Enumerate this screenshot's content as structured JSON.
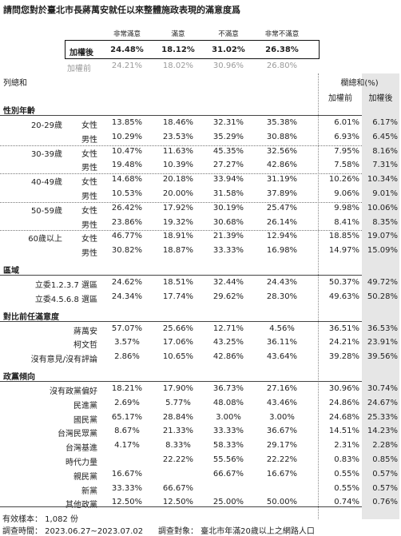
{
  "title": "請問您對於臺北市長蔣萬安就任以來整體施政表現的滿意度爲",
  "columns": [
    "非常滿意",
    "滿意",
    "不滿意",
    "非常不滿意"
  ],
  "weighted": {
    "label": "加權後",
    "values": [
      "24.48%",
      "18.12%",
      "31.02%",
      "26.38%"
    ]
  },
  "unweighted": {
    "label": "加權前",
    "values": [
      "24.21%",
      "18.02%",
      "30.96%",
      "26.80%"
    ]
  },
  "row_header": "列總和",
  "col_total_header": "欄總和(%)",
  "col_total_sub": [
    "加權前",
    "加權後"
  ],
  "sections": [
    {
      "title": "性別年齡",
      "groups": [
        {
          "label": "20-29歲",
          "rows": [
            {
              "sub": "女性",
              "v": [
                "13.85%",
                "18.46%",
                "32.31%",
                "35.38%"
              ],
              "pre": "6.01%",
              "post": "6.17%"
            },
            {
              "sub": "男性",
              "v": [
                "10.29%",
                "23.53%",
                "35.29%",
                "30.88%"
              ],
              "pre": "6.93%",
              "post": "6.45%"
            }
          ]
        },
        {
          "label": "30-39歲",
          "rows": [
            {
              "sub": "女性",
              "v": [
                "10.47%",
                "11.63%",
                "45.35%",
                "32.56%"
              ],
              "pre": "7.95%",
              "post": "8.16%"
            },
            {
              "sub": "男性",
              "v": [
                "19.48%",
                "10.39%",
                "27.27%",
                "42.86%"
              ],
              "pre": "7.58%",
              "post": "7.31%"
            }
          ]
        },
        {
          "label": "40-49歲",
          "rows": [
            {
              "sub": "女性",
              "v": [
                "14.68%",
                "20.18%",
                "33.94%",
                "31.19%"
              ],
              "pre": "10.26%",
              "post": "10.34%"
            },
            {
              "sub": "男性",
              "v": [
                "10.53%",
                "20.00%",
                "31.58%",
                "37.89%"
              ],
              "pre": "9.06%",
              "post": "9.01%"
            }
          ]
        },
        {
          "label": "50-59歲",
          "rows": [
            {
              "sub": "女性",
              "v": [
                "26.42%",
                "17.92%",
                "30.19%",
                "25.47%"
              ],
              "pre": "9.98%",
              "post": "10.06%"
            },
            {
              "sub": "男性",
              "v": [
                "23.86%",
                "19.32%",
                "30.68%",
                "26.14%"
              ],
              "pre": "8.41%",
              "post": "8.35%"
            }
          ]
        },
        {
          "label": "60歲以上",
          "rows": [
            {
              "sub": "女性",
              "v": [
                "46.77%",
                "18.91%",
                "21.39%",
                "12.94%"
              ],
              "pre": "18.85%",
              "post": "19.07%"
            },
            {
              "sub": "男性",
              "v": [
                "30.82%",
                "18.87%",
                "33.33%",
                "16.98%"
              ],
              "pre": "14.97%",
              "post": "15.09%"
            }
          ]
        }
      ]
    },
    {
      "title": "區域",
      "groups": [
        {
          "label": "",
          "rows": [
            {
              "sub": "立委1.2.3.7 選區",
              "v": [
                "24.62%",
                "18.51%",
                "32.44%",
                "24.43%"
              ],
              "pre": "50.37%",
              "post": "49.72%"
            },
            {
              "sub": "立委4.5.6.8 選區",
              "v": [
                "24.34%",
                "17.74%",
                "29.62%",
                "28.30%"
              ],
              "pre": "49.63%",
              "post": "50.28%"
            }
          ]
        }
      ]
    },
    {
      "title": "對比前任滿意度",
      "groups": [
        {
          "label": "",
          "rows": [
            {
              "sub": "蔣萬安",
              "v": [
                "57.07%",
                "25.66%",
                "12.71%",
                "4.56%"
              ],
              "pre": "36.51%",
              "post": "36.53%"
            },
            {
              "sub": "柯文哲",
              "v": [
                "3.57%",
                "17.06%",
                "43.25%",
                "36.11%"
              ],
              "pre": "24.21%",
              "post": "23.91%"
            },
            {
              "sub": "沒有意見/沒有評論",
              "v": [
                "2.86%",
                "10.65%",
                "42.86%",
                "43.64%"
              ],
              "pre": "39.28%",
              "post": "39.56%"
            }
          ]
        }
      ]
    },
    {
      "title": "政黨傾向",
      "groups": [
        {
          "label": "",
          "rows": [
            {
              "sub": "沒有政黨偏好",
              "v": [
                "18.21%",
                "17.90%",
                "36.73%",
                "27.16%"
              ],
              "pre": "30.96%",
              "post": "30.74%"
            },
            {
              "sub": "民進黨",
              "v": [
                "2.69%",
                "5.77%",
                "48.08%",
                "43.46%"
              ],
              "pre": "24.86%",
              "post": "24.67%"
            },
            {
              "sub": "國民黨",
              "v": [
                "65.17%",
                "28.84%",
                "3.00%",
                "3.00%"
              ],
              "pre": "24.68%",
              "post": "25.33%"
            },
            {
              "sub": "台灣民眾黨",
              "v": [
                "8.67%",
                "21.33%",
                "33.33%",
                "36.67%"
              ],
              "pre": "14.51%",
              "post": "14.23%"
            },
            {
              "sub": "台灣基進",
              "v": [
                "4.17%",
                "8.33%",
                "58.33%",
                "29.17%"
              ],
              "pre": "2.31%",
              "post": "2.28%"
            },
            {
              "sub": "時代力量",
              "v": [
                "",
                "22.22%",
                "55.56%",
                "22.22%"
              ],
              "pre": "0.83%",
              "post": "0.85%"
            },
            {
              "sub": "親民黨",
              "v": [
                "16.67%",
                "",
                "66.67%",
                "16.67%"
              ],
              "pre": "0.55%",
              "post": "0.57%"
            },
            {
              "sub": "新黨",
              "v": [
                "33.33%",
                "66.67%",
                "",
                ""
              ],
              "pre": "0.55%",
              "post": "0.57%"
            },
            {
              "sub": "其他政黨",
              "v": [
                "12.50%",
                "12.50%",
                "25.00%",
                "50.00%"
              ],
              "pre": "0.74%",
              "post": "0.76%"
            }
          ]
        }
      ]
    }
  ],
  "footer": {
    "sample": "有效樣本： 1,082 份",
    "period": "調查時間： 2023.06.27~2023.07.02",
    "target": "調查對象： 臺北市年滿20歲以上之網路人口"
  }
}
